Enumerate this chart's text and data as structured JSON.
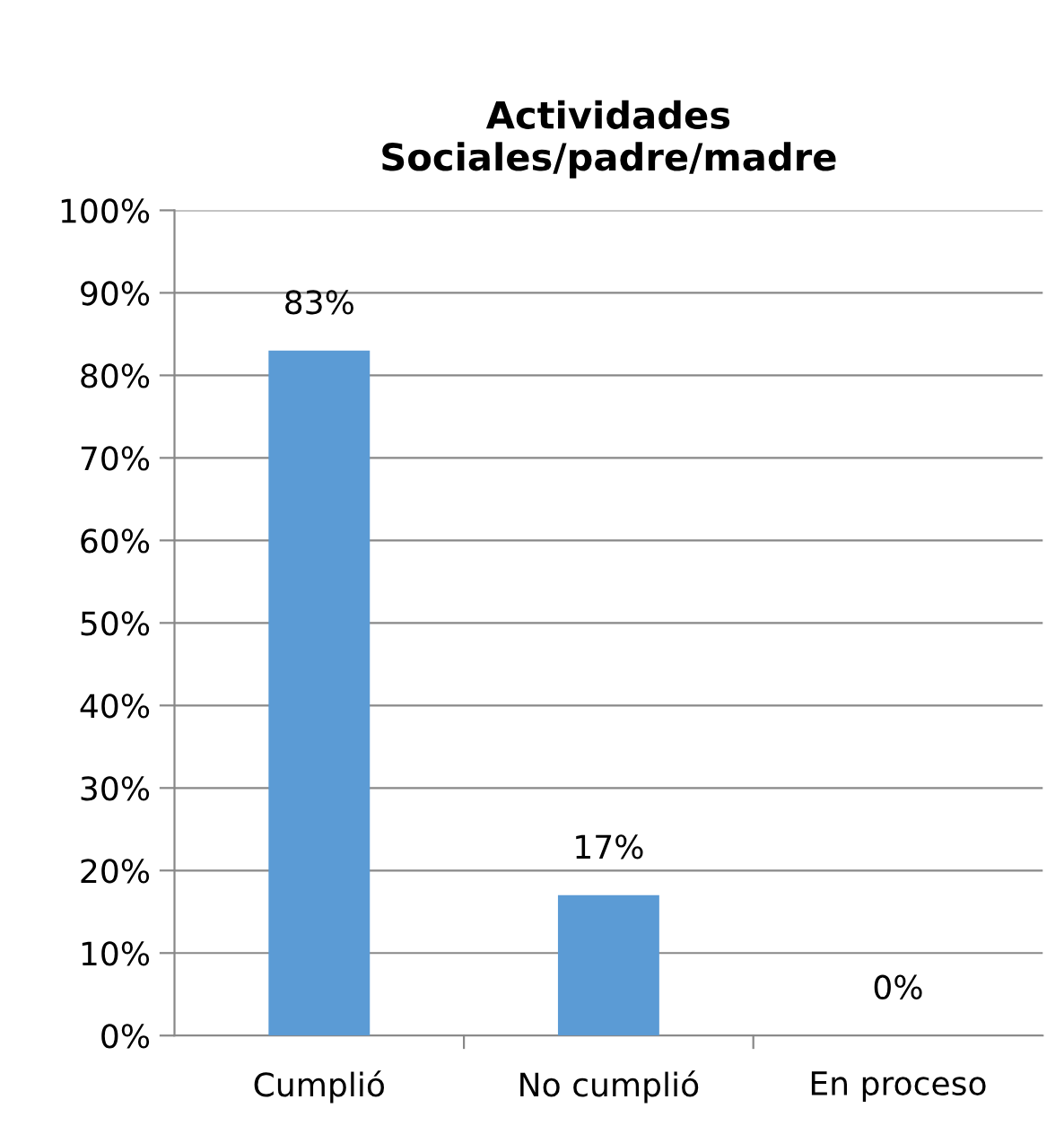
{
  "chart_data": {
    "type": "bar",
    "title": "Actividades\nSociales/padre/madre",
    "categories": [
      "Cumplió",
      "No cumplió",
      "En proceso"
    ],
    "values": [
      83,
      17,
      0
    ],
    "color": "#5b9bd5",
    "value_labels": [
      "83%",
      "17%",
      "0%"
    ],
    "ylim": [
      0,
      100
    ],
    "yticks": [
      {
        "value": 0,
        "label": "0%"
      },
      {
        "value": 10,
        "label": "10%"
      },
      {
        "value": 20,
        "label": "20%"
      },
      {
        "value": 30,
        "label": "30%"
      },
      {
        "value": 40,
        "label": "40%"
      },
      {
        "value": 50,
        "label": "50%"
      },
      {
        "value": 60,
        "label": "60%"
      },
      {
        "value": 70,
        "label": "70%"
      },
      {
        "value": 80,
        "label": "80%"
      },
      {
        "value": 90,
        "label": "90%"
      },
      {
        "value": 100,
        "label": "100%"
      }
    ],
    "grid": "y",
    "legend": false
  }
}
